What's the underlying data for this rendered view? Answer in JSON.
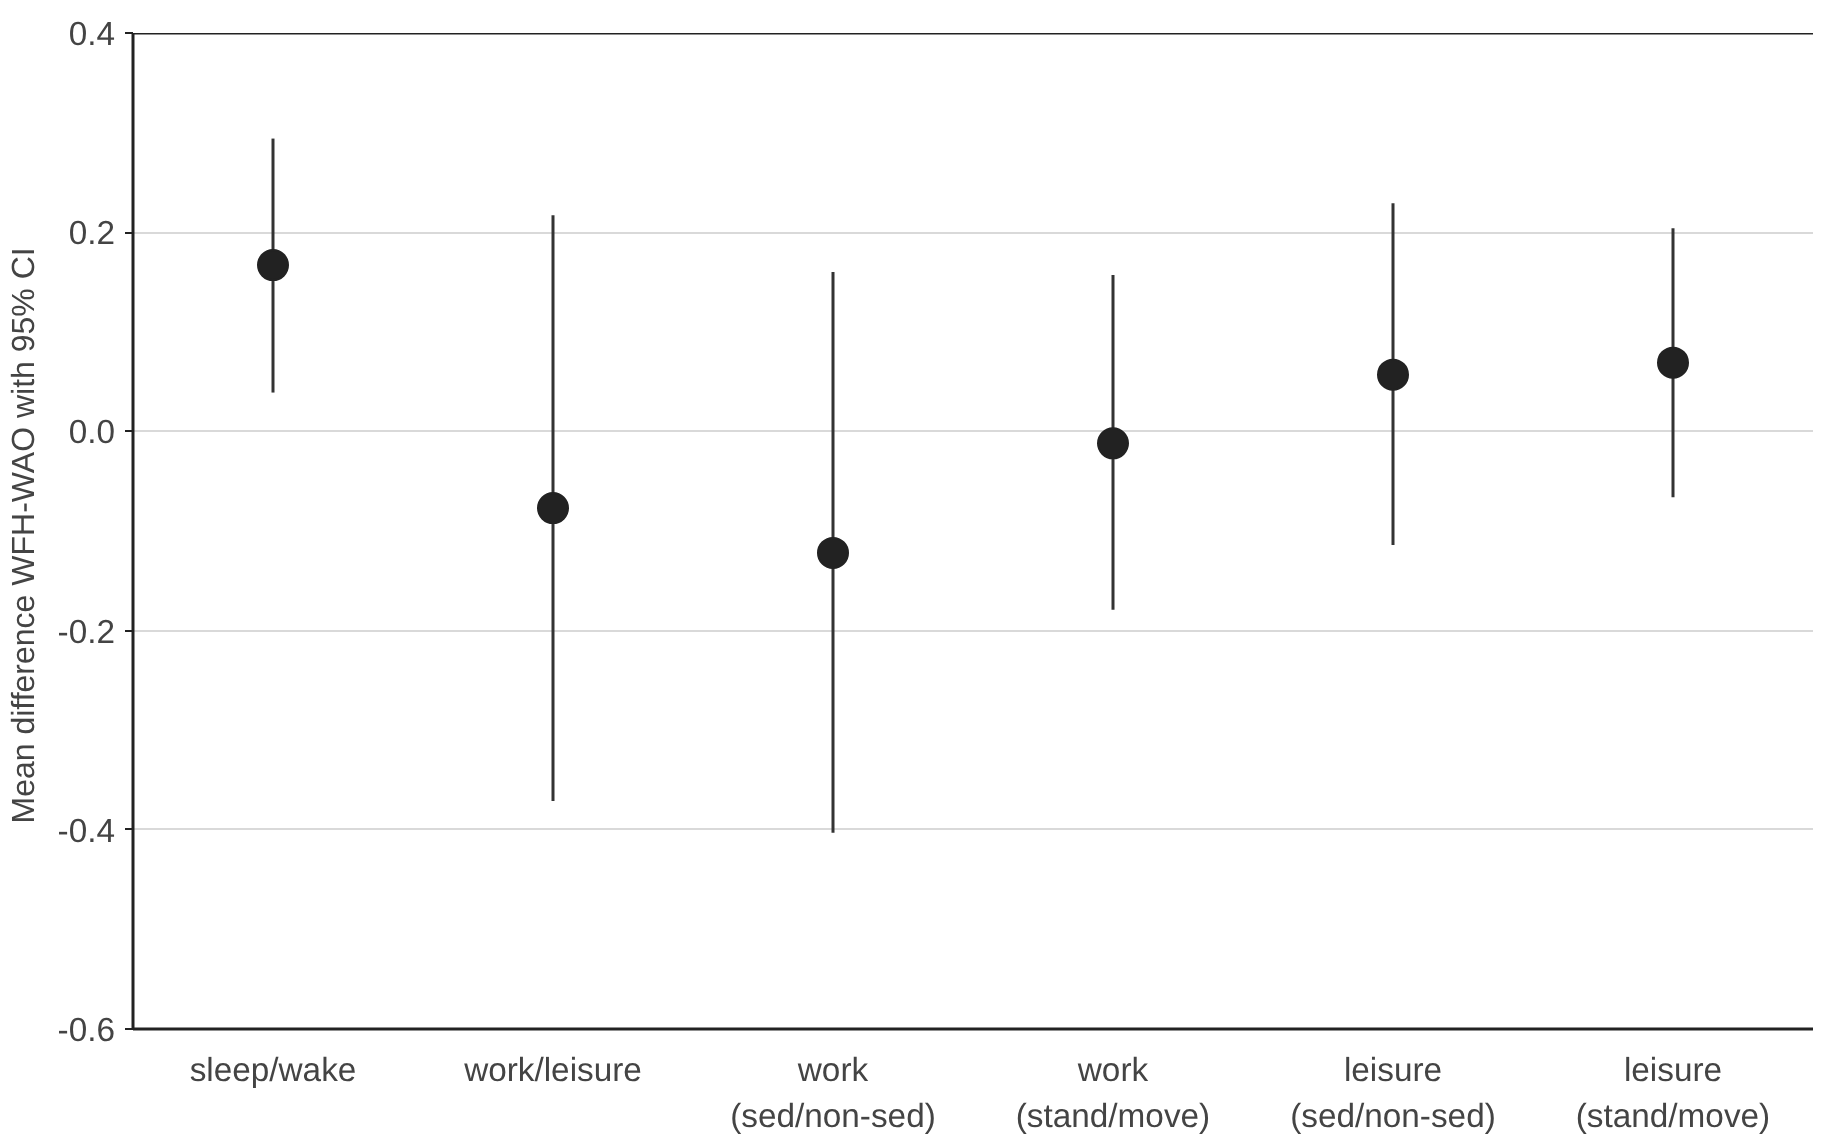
{
  "chart_data": {
    "type": "scatter",
    "ylabel": "Mean difference WFH-WAO  with 95% CI",
    "categories": [
      "sleep/wake",
      "work/leisure",
      "work\n(sed/non-sed)",
      "work\n(stand/move)",
      "leisure\n(sed/non-sed)",
      "leisure\n(stand/move)"
    ],
    "series": [
      {
        "color": "#222222",
        "values": [
          0.167,
          -0.077,
          -0.122,
          -0.012,
          0.057,
          0.069
        ],
        "errors": [
          [
            0.039,
            0.294
          ],
          [
            -0.371,
            0.217
          ],
          [
            -0.403,
            0.16
          ],
          [
            -0.179,
            0.157
          ],
          [
            -0.114,
            0.229
          ],
          [
            -0.066,
            0.204
          ]
        ]
      }
    ],
    "ylim": [
      -0.6,
      0.4
    ],
    "yticks": [
      {
        "value": -0.6,
        "label": "-0.6"
      },
      {
        "value": -0.4,
        "label": "-0.4"
      },
      {
        "value": -0.2,
        "label": "-0.2"
      },
      {
        "value": 0,
        "label": "0.0"
      },
      {
        "value": 0.2,
        "label": "0.2"
      },
      {
        "value": 0.4,
        "label": "0.4"
      }
    ],
    "grid": "y",
    "marker": "circle"
  }
}
